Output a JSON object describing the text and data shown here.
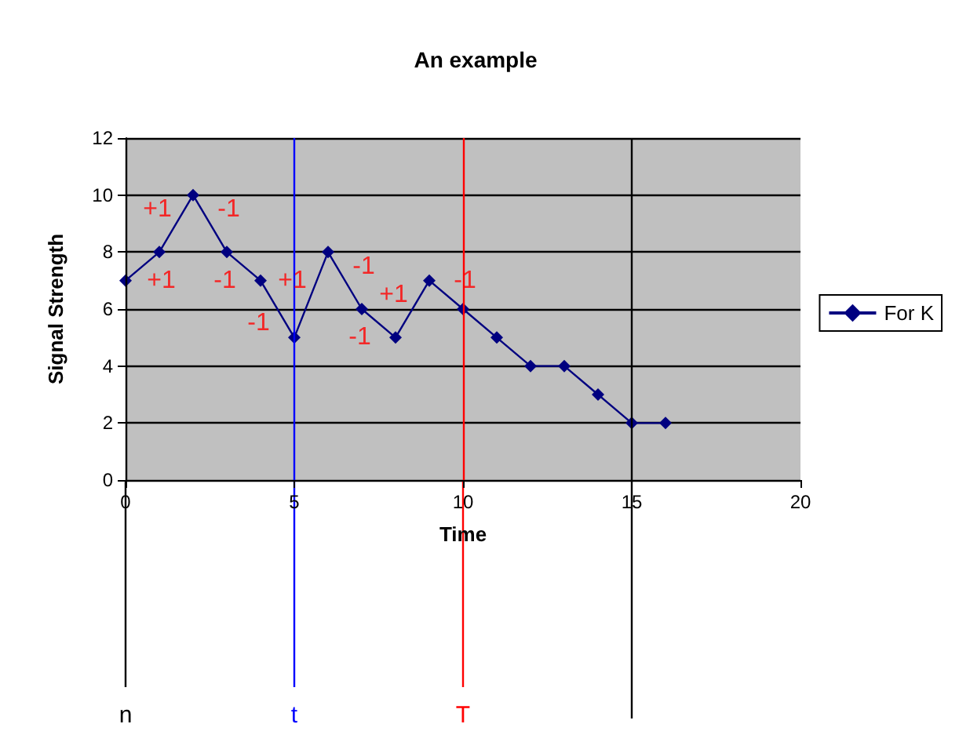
{
  "chart_data": {
    "type": "line",
    "title": "An example",
    "xlabel": "Time",
    "ylabel": "Signal Strength",
    "x": [
      0,
      1,
      2,
      3,
      4,
      5,
      6,
      7,
      8,
      9,
      10,
      11,
      12,
      13,
      14,
      15,
      16
    ],
    "series": [
      {
        "name": "For K",
        "color": "#000080",
        "values": [
          7,
          8,
          10,
          8,
          7,
          5,
          8,
          6,
          5,
          7,
          6,
          5,
          4,
          4,
          3,
          2,
          2
        ]
      }
    ],
    "xlim": [
      0,
      20
    ],
    "xticks": [
      0,
      5,
      10,
      15,
      20
    ],
    "ylim": [
      0,
      12
    ],
    "yticks": [
      0,
      2,
      4,
      6,
      8,
      10,
      12
    ],
    "grid": "y",
    "legend": "right",
    "marker": "diamond",
    "line_style": "solid",
    "ref_lines": [
      {
        "axis": "x",
        "value": 0,
        "label": "n",
        "color": "#000000"
      },
      {
        "axis": "x",
        "value": 5,
        "label": "t",
        "color": "#0000ff"
      },
      {
        "axis": "x",
        "value": 10,
        "label": "T",
        "color": "#ff0000"
      },
      {
        "axis": "x",
        "value": 15,
        "label": null,
        "color": "#000000"
      }
    ],
    "annotations": [
      {
        "text": "+1",
        "x": 0.5,
        "y": 7.5
      },
      {
        "text": "+1",
        "x": 1.5,
        "y": 9
      },
      {
        "text": "-1",
        "x": 2.5,
        "y": 9
      },
      {
        "text": "-1",
        "x": 3.5,
        "y": 7.5
      },
      {
        "text": "-1",
        "x": 4.5,
        "y": 6
      },
      {
        "text": "+1",
        "x": 5.5,
        "y": 6.5
      },
      {
        "text": "-1",
        "x": 6.5,
        "y": 7
      },
      {
        "text": "-1",
        "x": 7.5,
        "y": 5.5
      },
      {
        "text": "+1",
        "x": 8.5,
        "y": 6
      },
      {
        "text": "-1",
        "x": 9.5,
        "y": 6.5
      }
    ]
  }
}
